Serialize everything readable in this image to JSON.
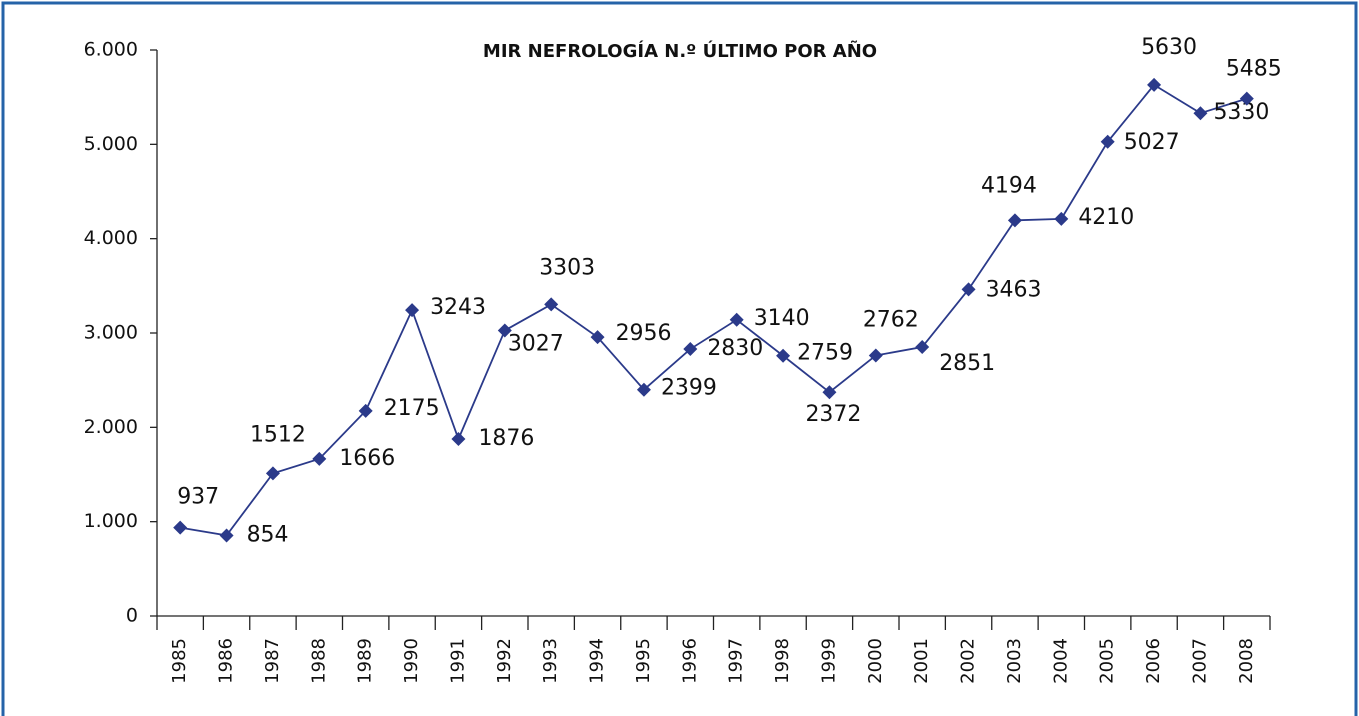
{
  "chart_data": {
    "type": "line",
    "title": "MIR NEFROLOGÍA N.º ÚLTIMO POR AÑO",
    "categories": [
      "1985",
      "1986",
      "1987",
      "1988",
      "1989",
      "1990",
      "1991",
      "1992",
      "1993",
      "1994",
      "1995",
      "1996",
      "1997",
      "1998",
      "1999",
      "2000",
      "2001",
      "2002",
      "2003",
      "2004",
      "2005",
      "2006",
      "2007",
      "2008"
    ],
    "values": [
      937,
      854,
      1512,
      1666,
      2175,
      3243,
      1876,
      3027,
      3303,
      2956,
      2399,
      2830,
      3140,
      2759,
      2372,
      2762,
      2851,
      3463,
      4194,
      4210,
      5027,
      5630,
      5330,
      5485
    ],
    "color": "#2b3a8a",
    "ylim": [
      0,
      6000
    ],
    "yticks": [
      0,
      {
        "value": 1000,
        "label": "1.000"
      },
      {
        "value": 2000,
        "label": "2.000"
      },
      {
        "value": 3000,
        "label": "3.000"
      },
      {
        "value": 4000,
        "label": "4.000"
      },
      {
        "value": 5000,
        "label": "5.000"
      },
      {
        "value": 6000,
        "label": "6.000"
      }
    ],
    "grid": false
  }
}
